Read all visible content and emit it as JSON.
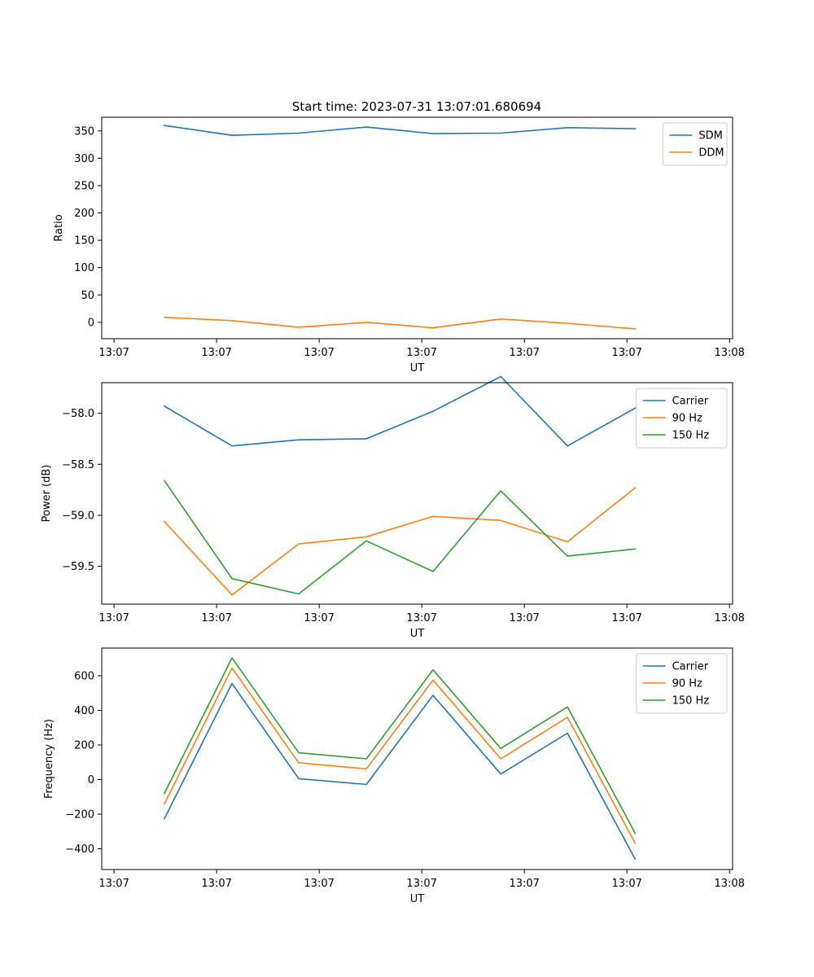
{
  "figure": {
    "title": "Start time: 2023-07-31 13:07:01.680694"
  },
  "colors": {
    "blue": "#1f77b4",
    "orange": "#ff7f0e",
    "green": "#2ca02c"
  },
  "chart_data": [
    {
      "type": "line",
      "title": "Start time: 2023-07-31 13:07:01.680694",
      "xlabel": "UT",
      "ylabel": "Ratio",
      "x_ticks": [
        "13:07",
        "13:07",
        "13:07",
        "13:07",
        "13:07",
        "13:07",
        "13:08"
      ],
      "x_tick_positions": [
        0,
        1,
        2,
        3,
        4,
        5,
        6
      ],
      "x_range": [
        -0.12,
        6.03
      ],
      "x": [
        0.49,
        1.15,
        1.8,
        2.46,
        3.11,
        3.77,
        4.42,
        5.08
      ],
      "ylim": [
        -30,
        375
      ],
      "y_ticks": [
        0,
        50,
        100,
        150,
        200,
        250,
        300,
        350
      ],
      "legend": "top-right",
      "series": [
        {
          "name": "SDM",
          "color": "#1f77b4",
          "values": [
            360,
            342,
            346,
            357,
            345,
            346,
            356,
            354
          ]
        },
        {
          "name": "DDM",
          "color": "#ff7f0e",
          "values": [
            9,
            3,
            -9,
            0,
            -10,
            6,
            -2,
            -12
          ]
        }
      ]
    },
    {
      "type": "line",
      "title": "",
      "xlabel": "UT",
      "ylabel": "Power (dB)",
      "x_ticks": [
        "13:07",
        "13:07",
        "13:07",
        "13:07",
        "13:07",
        "13:07",
        "13:08"
      ],
      "x_tick_positions": [
        0,
        1,
        2,
        3,
        4,
        5,
        6
      ],
      "x_range": [
        -0.12,
        6.03
      ],
      "x": [
        0.49,
        1.15,
        1.8,
        2.46,
        3.11,
        3.77,
        4.42,
        5.08
      ],
      "ylim": [
        -59.87,
        -57.7
      ],
      "y_ticks": [
        -58.0,
        -58.5,
        -59.0,
        -59.5
      ],
      "y_tick_labels": [
        "−58.0",
        "−58.5",
        "−59.0",
        "−59.5"
      ],
      "legend": "top-right",
      "series": [
        {
          "name": "Carrier",
          "color": "#1f77b4",
          "values": [
            -57.93,
            -58.32,
            -58.26,
            -58.25,
            -57.98,
            -57.64,
            -58.32,
            -57.95
          ]
        },
        {
          "name": "90 Hz",
          "color": "#ff7f0e",
          "values": [
            -59.06,
            -59.78,
            -59.28,
            -59.21,
            -59.01,
            -59.05,
            -59.26,
            -58.73
          ]
        },
        {
          "name": "150 Hz",
          "color": "#2ca02c",
          "values": [
            -58.66,
            -59.62,
            -59.77,
            -59.25,
            -59.55,
            -58.76,
            -59.4,
            -59.33
          ]
        }
      ]
    },
    {
      "type": "line",
      "title": "",
      "xlabel": "UT",
      "ylabel": "Frequency (Hz)",
      "x_ticks": [
        "13:07",
        "13:07",
        "13:07",
        "13:07",
        "13:07",
        "13:07",
        "13:08"
      ],
      "x_tick_positions": [
        0,
        1,
        2,
        3,
        4,
        5,
        6
      ],
      "x_range": [
        -0.12,
        6.03
      ],
      "x": [
        0.49,
        1.15,
        1.8,
        2.46,
        3.11,
        3.77,
        4.42,
        5.08
      ],
      "ylim": [
        -520,
        760
      ],
      "y_ticks": [
        600,
        400,
        200,
        0,
        -200,
        -400
      ],
      "y_tick_labels": [
        "600",
        "400",
        "200",
        "0",
        "−200",
        "−400"
      ],
      "legend": "top-right",
      "series": [
        {
          "name": "Carrier",
          "color": "#1f77b4",
          "values": [
            -227,
            555,
            5,
            -28,
            487,
            32,
            268,
            -460
          ]
        },
        {
          "name": "90 Hz",
          "color": "#ff7f0e",
          "values": [
            -140,
            645,
            97,
            62,
            575,
            120,
            360,
            -368
          ]
        },
        {
          "name": "150 Hz",
          "color": "#2ca02c",
          "values": [
            -80,
            703,
            155,
            120,
            635,
            180,
            420,
            -310
          ]
        }
      ]
    }
  ]
}
